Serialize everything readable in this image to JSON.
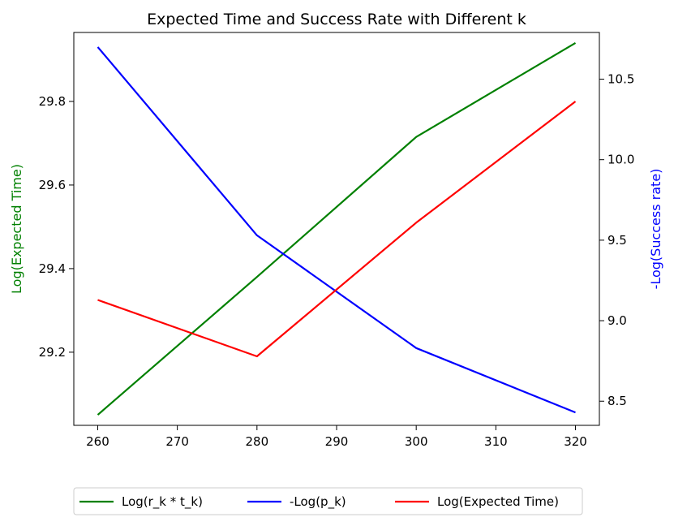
{
  "chart_data": {
    "type": "line",
    "title": "Expected Time and Success Rate with Different k",
    "xlabel": "",
    "ylabel_left": "Log(Expected Time)",
    "ylabel_right": "-Log(Success rate)",
    "x": [
      260,
      280,
      300,
      320
    ],
    "x_ticks": [
      "260",
      "270",
      "280",
      "290",
      "300",
      "310",
      "320"
    ],
    "x_range": [
      257,
      323
    ],
    "y_left_ticks": [
      "29.2",
      "29.4",
      "29.6",
      "29.8"
    ],
    "y_left_range": [
      29.025,
      29.965
    ],
    "y_right_ticks": [
      "8.5",
      "9.0",
      "9.5",
      "10.0",
      "10.5"
    ],
    "y_right_range": [
      8.35,
      10.79
    ],
    "grid": false,
    "legend_position": "bottom-center",
    "series": [
      {
        "name": "Log(r_k * t_k)",
        "axis": "left",
        "color": "#008000",
        "values": [
          29.05,
          29.38,
          29.715,
          29.94
        ]
      },
      {
        "name": "-Log(p_k)",
        "axis": "right",
        "color": "#0000ff",
        "values": [
          10.7,
          9.53,
          8.83,
          8.43
        ]
      },
      {
        "name": "Log(Expected Time)",
        "axis": "left",
        "color": "#ff0000",
        "values": [
          29.325,
          29.19,
          29.51,
          29.8
        ]
      }
    ],
    "colors": {
      "left_label": "#008000",
      "right_label": "#0000ff",
      "axes": "#000000"
    }
  }
}
